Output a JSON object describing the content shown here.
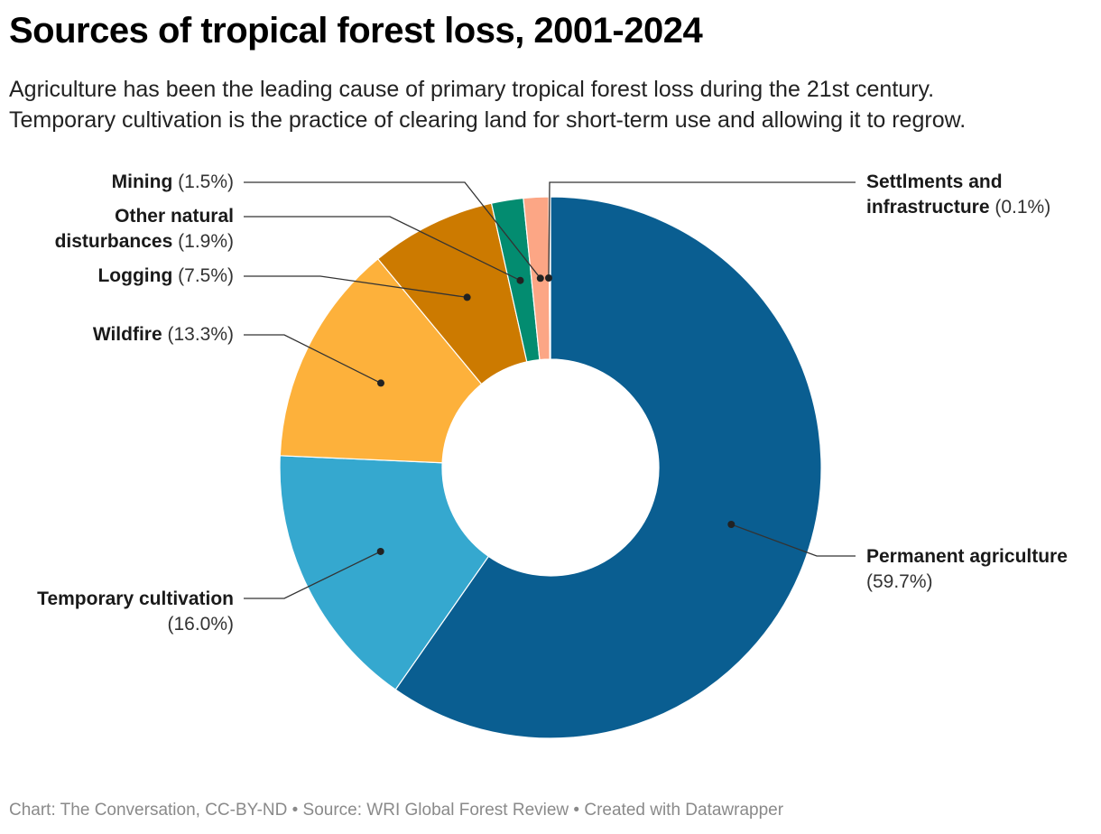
{
  "title": "Sources of tropical forest loss, 2001-2024",
  "subtitle_lines": [
    "Agriculture has been the leading cause of primary tropical forest loss during the 21st century.",
    "Temporary cultivation is the practice of clearing land for short-term use and allowing it to regrow."
  ],
  "footer": "Chart: The Conversation, CC-BY-ND • Source: WRI Global Forest Review • Created with Datawrapper",
  "chart_data": {
    "type": "pie",
    "variant": "donut",
    "title": "Sources of tropical forest loss, 2001-2024",
    "unit": "%",
    "slices": [
      {
        "label": "Permanent agriculture",
        "value": 59.7,
        "pct_label": "(59.7%)",
        "color": "#0a5e91"
      },
      {
        "label": "Temporary cultivation",
        "value": 16.0,
        "pct_label": "(16.0%)",
        "color": "#35a8cf"
      },
      {
        "label": "Wildfire",
        "value": 13.3,
        "pct_label": "(13.3%)",
        "color": "#fdb13b"
      },
      {
        "label": "Logging",
        "value": 7.5,
        "pct_label": "(7.5%)",
        "color": "#cc7a00"
      },
      {
        "label": "Other natural disturbances",
        "value": 1.9,
        "pct_label": "(1.9%)",
        "color": "#038c70"
      },
      {
        "label": "Mining",
        "value": 1.5,
        "pct_label": "(1.5%)",
        "color": "#fca685"
      },
      {
        "label": "Settlments and infrastructure",
        "value": 0.1,
        "pct_label": "(0.1%)",
        "color": "#f2d0bf"
      }
    ]
  }
}
